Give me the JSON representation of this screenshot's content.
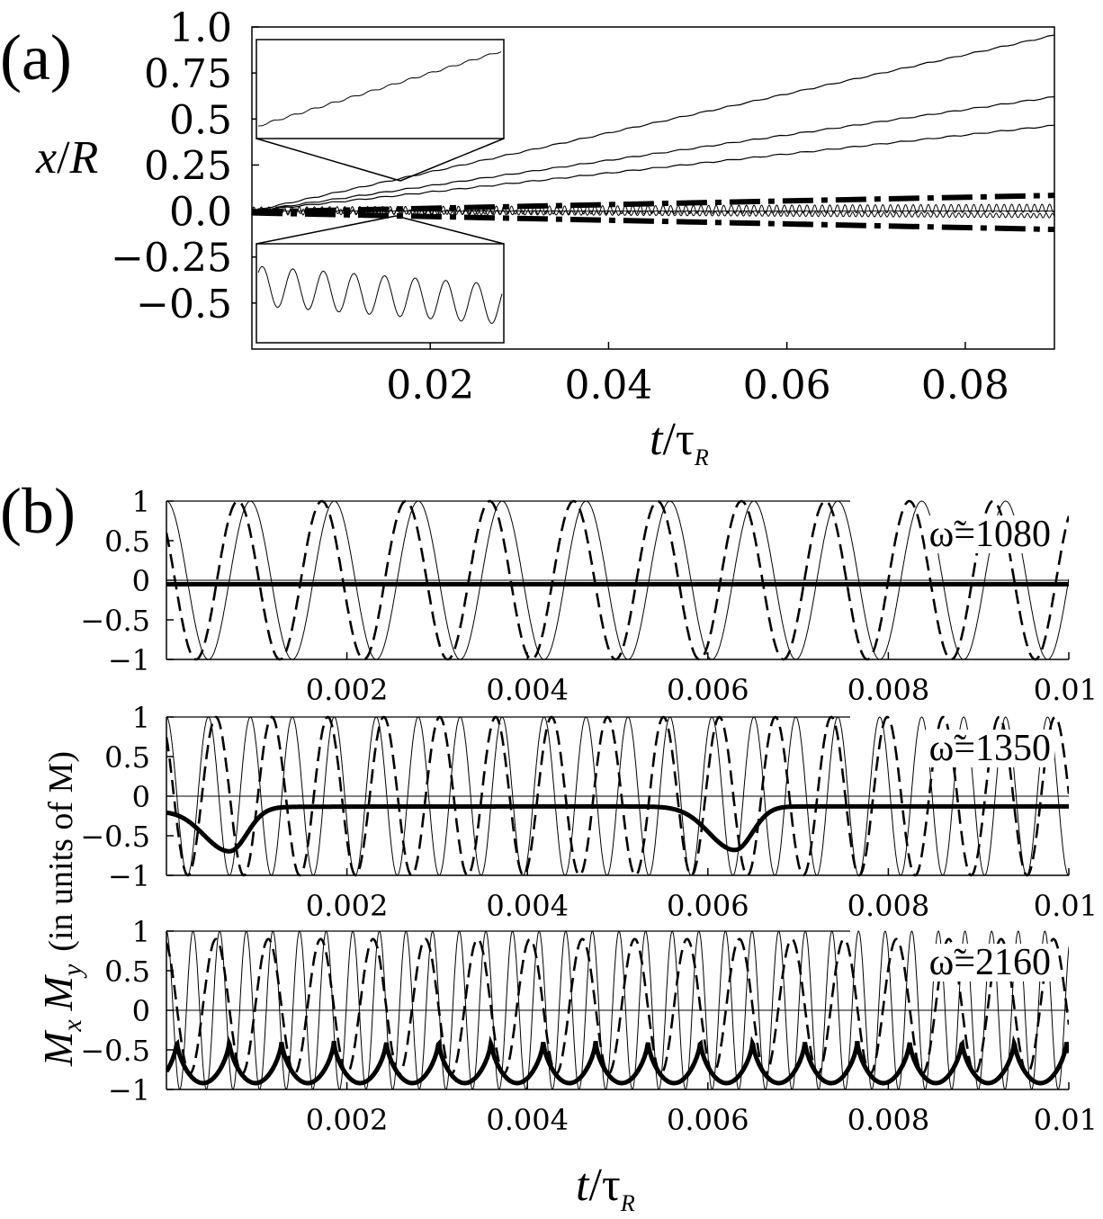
{
  "figure": {
    "panel_a_label": "(a)",
    "panel_b_label": "(b)"
  },
  "chart_data": [
    {
      "id": "panel-a",
      "type": "line",
      "ylabel_main": "x",
      "ylabel_sep": "/",
      "ylabel_var": "R",
      "xlabel_main": "t",
      "xlabel_sep": "/",
      "xlabel_tau": "τ",
      "xlabel_sub": "R",
      "xlim": [
        0.0,
        0.09
      ],
      "ylim": [
        -0.75,
        1.0
      ],
      "xticks": [
        0.02,
        0.04,
        0.06,
        0.08
      ],
      "xtick_labels": [
        "0.02",
        "0.04",
        "0.06",
        "0.08"
      ],
      "yticks": [
        1.0,
        0.75,
        0.5,
        0.25,
        0.0,
        -0.25,
        -0.5
      ],
      "ytick_labels": [
        "1.0",
        "0.75",
        "0.5",
        "0.25",
        "0.0",
        "−0.25",
        "−0.5"
      ],
      "series": [
        {
          "style": "thin",
          "x": [
            0,
            0.09
          ],
          "y": [
            0,
            0.955
          ]
        },
        {
          "style": "thin",
          "x": [
            0,
            0.09
          ],
          "y": [
            0,
            0.62
          ]
        },
        {
          "style": "thin",
          "x": [
            0,
            0.09
          ],
          "y": [
            0,
            0.465
          ]
        },
        {
          "style": "oscillating-thin",
          "slope": 0.17,
          "amplitude": 0.022,
          "period": 0.00085
        },
        {
          "style": "oscillating-thin",
          "slope": -0.28,
          "amplitude": 0.012,
          "period": 0.0007
        },
        {
          "style": "thick-dash-dot",
          "x": [
            0,
            0.09
          ],
          "y": [
            -0.005,
            0.085
          ]
        },
        {
          "style": "thick-dash-dot",
          "x": [
            0,
            0.09
          ],
          "y": [
            -0.01,
            -0.1
          ]
        }
      ],
      "insets": [
        {
          "position": "upper",
          "shows": "linear-drift-zoom"
        },
        {
          "position": "lower",
          "shows": "oscillation-zoom"
        }
      ]
    },
    {
      "id": "panel-b1",
      "type": "line",
      "annotation_symbol": "ω̃",
      "annotation_value": "=1080",
      "xlim": [
        0.0,
        0.01
      ],
      "ylim": [
        -1,
        1
      ],
      "xtick_labels": [
        "0.002",
        "0.004",
        "0.006",
        "0.008",
        "0.01"
      ],
      "xticks": [
        0.002,
        0.004,
        0.006,
        0.008,
        0.01
      ],
      "ytick_labels": [
        "1",
        "0.5",
        "0",
        "−0.5",
        "−1"
      ],
      "yticks": [
        1,
        0.5,
        0,
        -0.5,
        -1
      ],
      "series": [
        {
          "style": "thin",
          "form": "sin",
          "amplitude": 1,
          "period": 0.00093,
          "phase": 1.5708
        },
        {
          "style": "dashed",
          "form": "sin",
          "amplitude": 1,
          "period": 0.00093,
          "phase": 2.5
        },
        {
          "style": "thick",
          "form": "const",
          "value": -0.05
        }
      ]
    },
    {
      "id": "panel-b2",
      "type": "line",
      "annotation_symbol": "ω̃",
      "annotation_value": "=1350",
      "xlim": [
        0.0,
        0.01
      ],
      "ylim": [
        -1,
        1
      ],
      "xtick_labels": [
        "0.002",
        "0.004",
        "0.006",
        "0.008",
        "0.01"
      ],
      "xticks": [
        0.002,
        0.004,
        0.006,
        0.008,
        0.01
      ],
      "ytick_labels": [
        "1",
        "0.5",
        "0",
        "−0.5",
        "−1"
      ],
      "yticks": [
        1,
        0.5,
        0,
        -0.5,
        -1
      ],
      "series": [
        {
          "style": "thin",
          "form": "sin",
          "amplitude": 1,
          "period": 0.000465,
          "phase": 1.5708
        },
        {
          "style": "dashed",
          "form": "sin",
          "amplitude": 1,
          "period": 0.00062,
          "phase": 2.3
        },
        {
          "style": "thick",
          "form": "dips",
          "baseline": -0.13,
          "dip_centers": [
            0.0007,
            0.0063
          ],
          "dip_depth": -0.68,
          "dip_width": 0.00045
        }
      ]
    },
    {
      "id": "panel-b3",
      "type": "line",
      "annotation_symbol": "ω̃",
      "annotation_value": "=2160",
      "xlim": [
        0.0,
        0.01
      ],
      "ylim": [
        -1,
        1
      ],
      "xtick_labels": [
        "0.002",
        "0.004",
        "0.006",
        "0.008",
        "0.01"
      ],
      "xticks": [
        0.002,
        0.004,
        0.006,
        0.008,
        0.01
      ],
      "ytick_labels": [
        "1",
        "0.5",
        "0",
        "−0.5",
        "−1"
      ],
      "yticks": [
        1,
        0.5,
        0,
        -0.5,
        -1
      ],
      "series": [
        {
          "style": "thin",
          "form": "sin",
          "amplitude": 1,
          "period": 0.000295,
          "phase": 1.5708
        },
        {
          "style": "dashed",
          "form": "sin",
          "amplitude": 0.85,
          "period": 0.00058,
          "phase": 1.9,
          "offset": 0.05
        },
        {
          "style": "thick",
          "form": "cusps",
          "period": 0.00058,
          "top": -0.38,
          "bottom": -0.92
        }
      ]
    }
  ],
  "panel_b_ylabel": {
    "mx_main": "M",
    "mx_sub": "x",
    "my_main": "M",
    "my_sub": "y",
    "units": "(in units of M)"
  },
  "panel_b_xlabel": {
    "main": "t",
    "sep": "/",
    "tau": "τ",
    "sub": "R"
  }
}
